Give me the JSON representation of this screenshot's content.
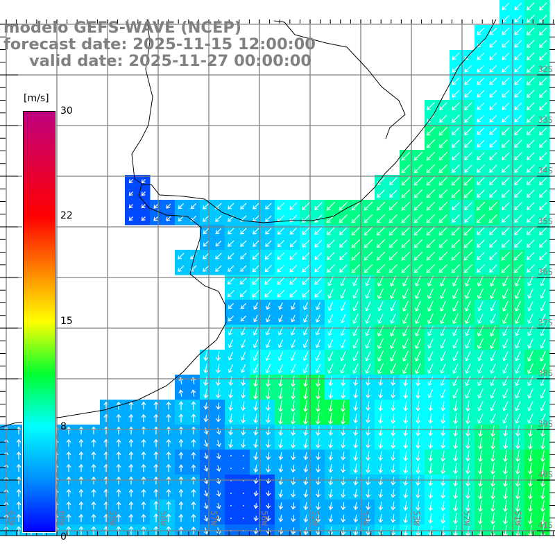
{
  "header": {
    "model": "modelo GEFS-WAVE (NCEP)",
    "forecast": "forecast date: 2025-11-15 12:00:00",
    "valid": "valid date: 2025-11-27 00:00:00"
  },
  "colorbar": {
    "unit": "[m/s]",
    "ticks": [
      "30",
      "22",
      "15",
      "8",
      "0"
    ],
    "min": 0,
    "max": 30,
    "stops": [
      [
        0,
        "#0000ff"
      ],
      [
        4,
        "#0090ff"
      ],
      [
        8,
        "#00ffff"
      ],
      [
        11.5,
        "#00ff30"
      ],
      [
        15,
        "#ffff00"
      ],
      [
        18.5,
        "#ff8000"
      ],
      [
        22,
        "#ff0000"
      ],
      [
        30,
        "#c0007f"
      ]
    ]
  },
  "axes": {
    "lon_labels": [
      "61W",
      "60W",
      "59W",
      "58W",
      "57W",
      "56W",
      "55W",
      "54W",
      "53W",
      "52W",
      "51W"
    ],
    "lat_labels": [
      "32S",
      "33S",
      "34S",
      "35S",
      "36S",
      "37S",
      "38S",
      "39S",
      "40S",
      "41S"
    ]
  },
  "colors": {
    "grid": "#808080",
    "arrow": "#ffffff",
    "land": "#ffffff",
    "coast": "#000000",
    "title": "#808080"
  },
  "wind_field": {
    "speed_codes": "0-9 = m/s, a=10, b=11, '.' = land",
    "speed": [
      "....................89",
      "...................889",
      "..................8889",
      "..................8889",
      ".................99889",
      ".................a9899",
      "................aa9999",
      ".....2.........9aaa999",
      ".....23566689aaaaa9a99",
      "........566789aaaaa999",
      ".......6667889aaaaa9a9",
      ".........788899aaaaaa9",
      ".........5556899aaa9a9",
      ".........777789aa99a99",
      "........7788899aa9999a",
      ".......477aab877889999",
      "....5556477abb78889999",
      "5555555546677778889a9a",
      "5555555433555677899aab",
      "5555555532255666789aab",
      "5555556532245556789aab",
      "6666666543345667889aab"
    ],
    "direction_codes": {
      "a": 225,
      "b": 205,
      "s": 188,
      "m": 350,
      "n": 0,
      "x": 165,
      "o": 180
    },
    "direction": [
      "....................aa",
      "...................aaa",
      "..................aaaa",
      "..................aaaa",
      ".................aaaaa",
      ".................aaaaa",
      "................aaaaaa",
      ".....a.........aaaaaaa",
      ".....aaaaaaaaaaaaaaaaa",
      "........aaaaaaaaaaaaaa",
      ".......aaaaaaaaaaaaaaa",
      ".........aaaabbbbbbbbb",
      ".........abbbbbbbbbbbb",
      ".........bbbbbbbbbbbbb",
      "........sbbbbbbbbbbbbb",
      ".......msssssssssbbbbb",
      "....nnnnsssssssssssbbb",
      "nnnnnnnnxsssssssssssss",
      "nnnnnnnnxossssssssssss",
      "nnnnnnnnxossssssssssss",
      "nnnnnnnnxossssssssssss",
      "nnnnnnnnxossssssssssss"
    ]
  }
}
